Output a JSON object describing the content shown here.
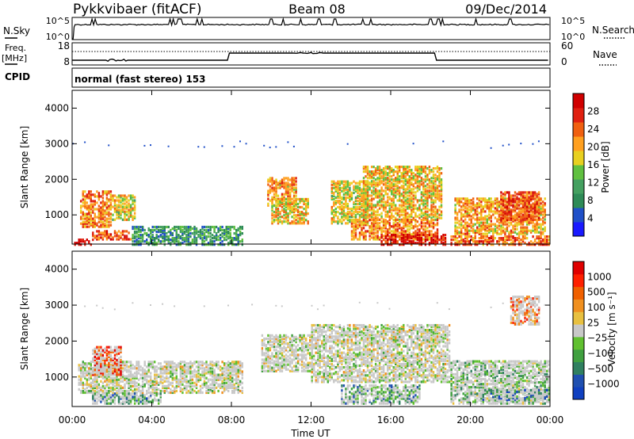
{
  "header": {
    "site": "Pykkvibaer (fitACF)",
    "beam": "Beam 08",
    "date": "09/Dec/2014"
  },
  "panels": {
    "nsky": {
      "label": "N.Sky",
      "ticks_left": [
        "10^5",
        "10^0"
      ],
      "ticks_right": [
        "10^5",
        "10^0"
      ],
      "right_label": "N.Search"
    },
    "freq": {
      "label_1": "Freq.",
      "label_2": "[MHz]",
      "ticks_left": [
        "18",
        "8"
      ],
      "ticks_right": [
        "60",
        "0"
      ],
      "right_label": "Nave"
    },
    "cpid": {
      "label": "CPID",
      "text": "normal (fast stereo) 153"
    }
  },
  "time_axis": {
    "ticks": [
      "00:00",
      "04:00",
      "08:00",
      "12:00",
      "16:00",
      "20:00",
      "00:00"
    ],
    "label": "Time UT"
  },
  "chart_data": [
    {
      "type": "heatmap",
      "name": "power",
      "title": "",
      "xlabel": "Time UT",
      "ylabel": "Slant Range [km]",
      "xlim_hours": [
        0,
        24
      ],
      "ylim_km": [
        180,
        4500
      ],
      "y_ticks": [
        "1000",
        "2000",
        "3000",
        "4000"
      ],
      "colorbar": {
        "label": "Power [dB]",
        "ticks": [
          "4",
          "8",
          "12",
          "16",
          "20",
          "24",
          "28"
        ],
        "colors": [
          "#1a1aff",
          "#2050c8",
          "#2e8b57",
          "#44a060",
          "#60c040",
          "#e8d020",
          "#ffa020",
          "#f06010",
          "#e02010",
          "#d00000"
        ]
      },
      "regions": [
        {
          "t": [
            0.4,
            2.0
          ],
          "r": [
            700,
            1700
          ],
          "level": 0.7
        },
        {
          "t": [
            2.0,
            3.2
          ],
          "r": [
            900,
            1600
          ],
          "level": 0.55
        },
        {
          "t": [
            1.0,
            3.0
          ],
          "r": [
            350,
            600
          ],
          "level": 0.8
        },
        {
          "t": [
            0.1,
            1.0
          ],
          "r": [
            200,
            350
          ],
          "level": 0.9
        },
        {
          "t": [
            3.0,
            8.5
          ],
          "r": [
            200,
            700
          ],
          "level": 0.3
        },
        {
          "t": [
            9.8,
            11.2
          ],
          "r": [
            1300,
            2100
          ],
          "level": 0.65
        },
        {
          "t": [
            10.0,
            11.8
          ],
          "r": [
            800,
            1500
          ],
          "level": 0.6
        },
        {
          "t": [
            13.0,
            14.8
          ],
          "r": [
            800,
            2000
          ],
          "level": 0.55
        },
        {
          "t": [
            14.6,
            18.6
          ],
          "r": [
            900,
            2400
          ],
          "level": 0.6
        },
        {
          "t": [
            14.0,
            18.4
          ],
          "r": [
            350,
            900
          ],
          "level": 0.7
        },
        {
          "t": [
            15.5,
            18.8
          ],
          "r": [
            200,
            500
          ],
          "level": 0.9
        },
        {
          "t": [
            19.2,
            23.8
          ],
          "r": [
            500,
            1500
          ],
          "level": 0.65
        },
        {
          "t": [
            21.5,
            23.5
          ],
          "r": [
            900,
            1700
          ],
          "level": 0.8
        },
        {
          "t": [
            19.0,
            24.0
          ],
          "r": [
            200,
            450
          ],
          "level": 0.75
        }
      ]
    },
    {
      "type": "heatmap",
      "name": "velocity",
      "title": "",
      "xlabel": "Time UT",
      "ylabel": "Slant Range [km]",
      "xlim_hours": [
        0,
        24
      ],
      "ylim_km": [
        180,
        4500
      ],
      "y_ticks": [
        "1000",
        "2000",
        "3000",
        "4000"
      ],
      "colorbar": {
        "label": "Velocity [m s⁻¹]",
        "ticks": [
          "1000",
          "500",
          "100",
          "25",
          "−25",
          "−100",
          "−500",
          "−1000"
        ],
        "colors": [
          "#1040c0",
          "#2050b0",
          "#308060",
          "#40a040",
          "#60c030",
          "#c8c8c8",
          "#e8c040",
          "#f09020",
          "#f06000",
          "#ff2000",
          "#e00000"
        ]
      },
      "regions": [
        {
          "t": [
            0.3,
            8.5
          ],
          "r": [
            600,
            1500
          ],
          "level": 0.5
        },
        {
          "t": [
            1.0,
            2.5
          ],
          "r": [
            1100,
            1900
          ],
          "level": 0.85
        },
        {
          "t": [
            1.0,
            4.5
          ],
          "r": [
            300,
            600
          ],
          "level": 0.25
        },
        {
          "t": [
            9.5,
            12.0
          ],
          "r": [
            1200,
            2200
          ],
          "level": 0.5
        },
        {
          "t": [
            12.0,
            19.0
          ],
          "r": [
            900,
            2500
          ],
          "level": 0.5
        },
        {
          "t": [
            13.5,
            17.5
          ],
          "r": [
            300,
            800
          ],
          "level": 0.3
        },
        {
          "t": [
            19.0,
            24.0
          ],
          "r": [
            300,
            1500
          ],
          "level": 0.4
        },
        {
          "t": [
            20.5,
            24.0
          ],
          "r": [
            400,
            700
          ],
          "level": 0.2
        },
        {
          "t": [
            22.0,
            23.5
          ],
          "r": [
            2500,
            3300
          ],
          "level": 0.75
        }
      ]
    }
  ]
}
